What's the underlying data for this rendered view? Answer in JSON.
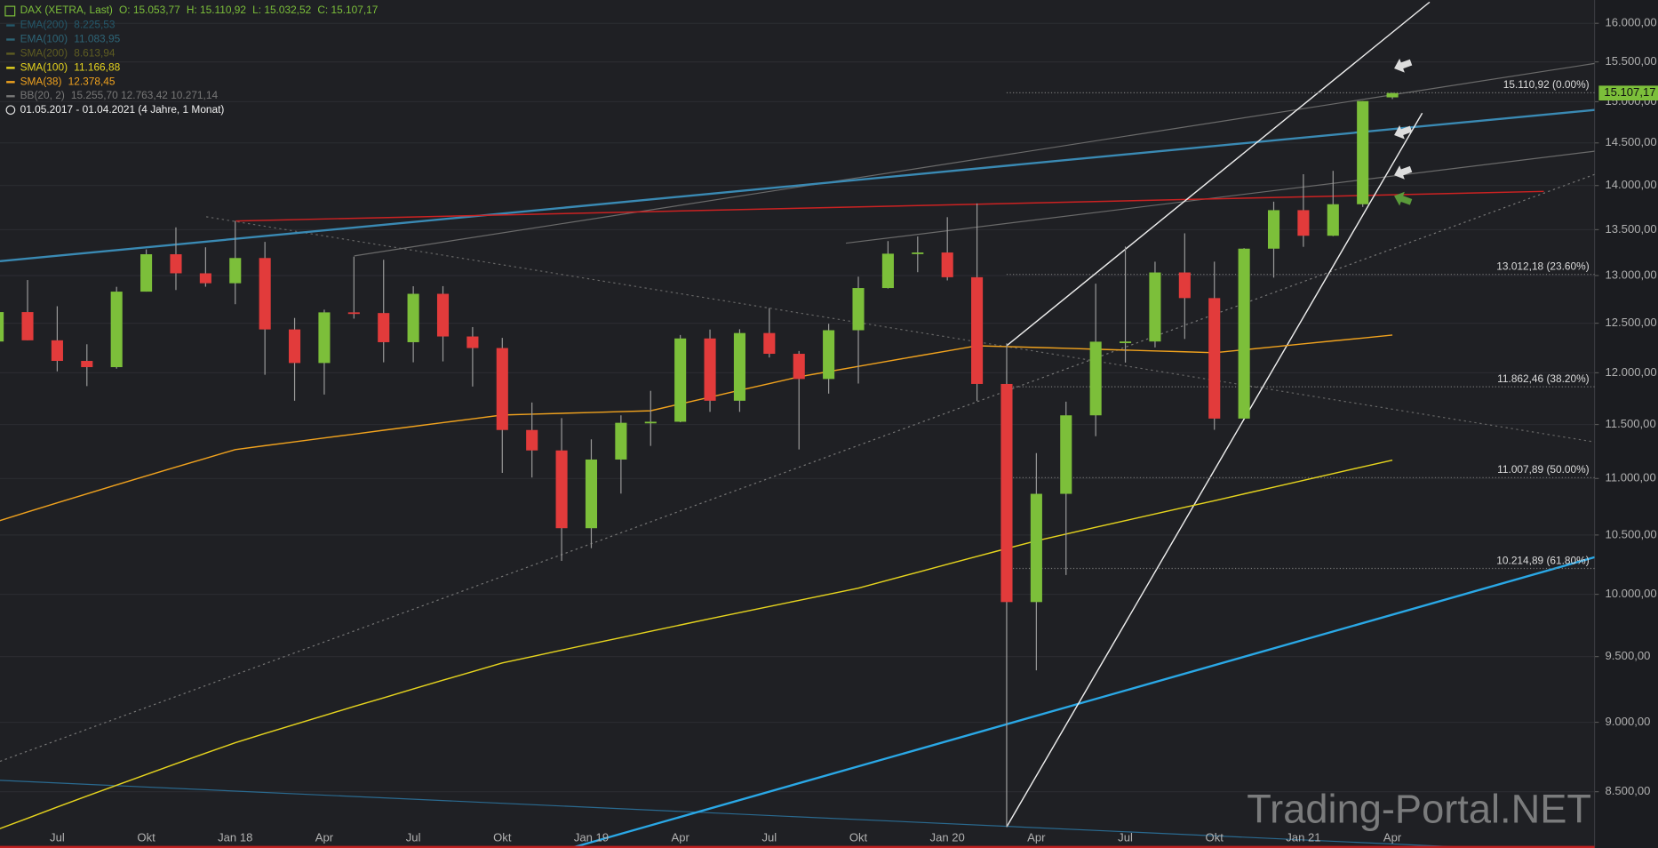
{
  "chart_data": {
    "type": "candlestick",
    "title": "DAX (XETRA, Last)",
    "quote": [
      "O: 15.053,77",
      "H: 15.110,92",
      "L: 15.032,52",
      "C: 15.107,17"
    ],
    "period": "01.05.2017 - 01.04.2021   (4 Jahre, 1 Monat)",
    "watermark": "Trading-Portal.NET",
    "log_scale": true,
    "grid": true,
    "up_color": "#7cbf3a",
    "down_color": "#e23b3b",
    "ylim": [
      8115,
      16310
    ],
    "yticks": [
      {
        "value": 8500,
        "label": "8.500,00"
      },
      {
        "value": 9000,
        "label": "9.000,00"
      },
      {
        "value": 9500,
        "label": "9.500,00"
      },
      {
        "value": 10000,
        "label": "10.000,00"
      },
      {
        "value": 10500,
        "label": "10.500,00"
      },
      {
        "value": 11000,
        "label": "11.000,00"
      },
      {
        "value": 11500,
        "label": "11.500,00"
      },
      {
        "value": 12000,
        "label": "12.000,00"
      },
      {
        "value": 12500,
        "label": "12.500,00"
      },
      {
        "value": 13000,
        "label": "13.000,00"
      },
      {
        "value": 13500,
        "label": "13.500,00"
      },
      {
        "value": 14000,
        "label": "14.000,00"
      },
      {
        "value": 14500,
        "label": "14.500,00"
      },
      {
        "value": 15000,
        "label": "15.000,00"
      },
      {
        "value": 15500,
        "label": "15.500,00"
      },
      {
        "value": 16000,
        "label": "16.000,00"
      }
    ],
    "categories": [
      null,
      null,
      "Jul",
      null,
      null,
      "Okt",
      null,
      null,
      "Jan 18",
      null,
      null,
      "Apr",
      null,
      null,
      "Jul",
      null,
      null,
      "Okt",
      null,
      null,
      "Jan 19",
      null,
      null,
      "Apr",
      null,
      null,
      "Jul",
      null,
      null,
      "Okt",
      null,
      null,
      "Jan 20",
      null,
      null,
      "Apr",
      null,
      null,
      "Jul",
      null,
      null,
      "Okt",
      null,
      null,
      "Jan 21",
      null,
      null,
      "Apr"
    ],
    "open": [
      12313,
      12615,
      12325,
      12118,
      12056,
      12829,
      13230,
      13024,
      12918,
      13189,
      12436,
      12097,
      12612,
      12605,
      12306,
      12806,
      12364,
      12247,
      11448,
      11257,
      10559,
      11173,
      11516,
      11526,
      12344,
      11727,
      12399,
      12189,
      11939,
      12428,
      12867,
      13236,
      13249,
      12982,
      11890,
      9936,
      10862,
      11587,
      12311,
      12313,
      13033,
      12761,
      11556,
      13291,
      13719,
      13433,
      13786,
      15053.77
    ],
    "high": [
      12841,
      12952,
      12676,
      12285,
      12880,
      13283,
      13526,
      13306,
      13597,
      13365,
      12554,
      12640,
      13204,
      13170,
      12886,
      12887,
      12460,
      12350,
      11710,
      11560,
      11360,
      11587,
      11823,
      12379,
      12435,
      12438,
      12656,
      12217,
      12494,
      12988,
      13374,
      13425,
      13640,
      13795,
      12294,
      11232,
      11718,
      12913,
      13314,
      13149,
      13460,
      13149,
      13297,
      13815,
      14131,
      14170,
      15008,
      15110.92
    ],
    "low": [
      12310,
      12325,
      12014,
      11869,
      12041,
      12829,
      12846,
      12881,
      12697,
      11980,
      11727,
      11787,
      12547,
      12104,
      12104,
      12113,
      11865,
      11051,
      11009,
      10279,
      10387,
      10864,
      11299,
      11521,
      11620,
      11620,
      12152,
      11266,
      11796,
      11894,
      12862,
      13036,
      12948,
      11725,
      8256,
      9393,
      10160,
      11389,
      12101,
      12253,
      12339,
      11450,
      11556,
      12978,
      13311,
      13428,
      13755,
      15032.52
    ],
    "close": [
      12615,
      12325,
      12118,
      12056,
      12829,
      13230,
      13024,
      12918,
      13189,
      12436,
      12097,
      12612,
      12605,
      12306,
      12806,
      12364,
      12247,
      11448,
      11257,
      10559,
      11173,
      11516,
      11526,
      12344,
      11727,
      12399,
      12189,
      11939,
      12428,
      12867,
      13236,
      13249,
      12982,
      11890,
      9936,
      10862,
      11587,
      12311,
      12313,
      13033,
      12761,
      11556,
      13291,
      13719,
      13433,
      13786,
      15008,
      15107.17
    ],
    "legend": [
      {
        "name": "EMA(200)",
        "value": "8.225,53",
        "color": "#24586a"
      },
      {
        "name": "EMA(100)",
        "value": "11.083,95",
        "color": "#2d6476"
      },
      {
        "name": "SMA(200)",
        "value": "8.613,94",
        "color": "#5e5c22"
      },
      {
        "name": "SMA(100)",
        "value": "11.166,88",
        "color": "#e6d41e",
        "values": [
          8240,
          8316,
          8393,
          8469,
          8545,
          8621,
          8698,
          8774,
          8850,
          8917,
          8983,
          9050,
          9117,
          9183,
          9250,
          9317,
          9383,
          9450,
          9500,
          9550,
          9600,
          9650,
          9700,
          9750,
          9800,
          9850,
          9900,
          9950,
          10000,
          10050,
          10117,
          10183,
          10250,
          10317,
          10383,
          10450,
          10508,
          10567,
          10625,
          10683,
          10742,
          10800,
          10861,
          10922,
          10983,
          11044,
          11106,
          11167
        ]
      },
      {
        "name": "SMA(38)",
        "value": "12.378,45",
        "color": "#f0a21e",
        "values": [
          10620,
          10701,
          10781,
          10862,
          10943,
          11023,
          11104,
          11184,
          11265,
          11301,
          11337,
          11373,
          11409,
          11446,
          11482,
          11518,
          11554,
          11590,
          11598,
          11606,
          11614,
          11622,
          11630,
          11696,
          11762,
          11828,
          11894,
          11960,
          12012,
          12063,
          12115,
          12167,
          12218,
          12270,
          12261,
          12253,
          12244,
          12235,
          12226,
          12218,
          12209,
          12200,
          12230,
          12259,
          12289,
          12319,
          12348,
          12378
        ]
      },
      {
        "name": "BB(20, 2)",
        "value": "15.255,70  12.763,42  10.271,14",
        "color": "#777777"
      }
    ],
    "levels": [
      {
        "value": 15110.92,
        "label": "15.110,92 (0.00%)"
      },
      {
        "value": 13012.18,
        "label": "13.012,18 (23.60%)"
      },
      {
        "value": 11862.46,
        "label": "11.862,46 (38.20%)"
      },
      {
        "value": 11007.89,
        "label": "11.007,89 (50.00%)"
      },
      {
        "value": 10214.89,
        "label": "10.214,89 (61.80%)"
      }
    ],
    "last_price": {
      "value": 15107.17,
      "label": "15.107,17"
    }
  }
}
